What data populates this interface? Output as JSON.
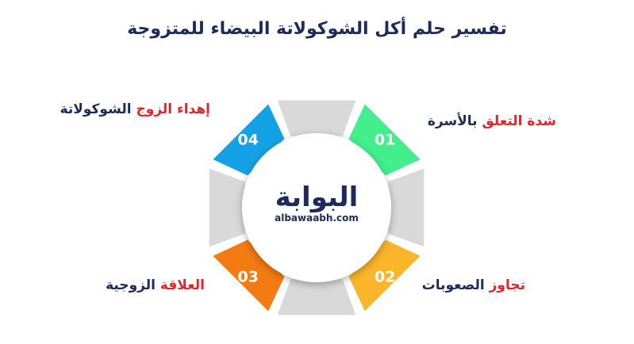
{
  "title": "تفسير حلم أكل الشوكولاتة البيضاء للمتزوجة",
  "logo": {
    "name": "البوابة",
    "site": "albawaabh.com"
  },
  "items": [
    {
      "number": "01",
      "highlight": "شدة التعلق",
      "rest": "بالأسرة"
    },
    {
      "number": "02",
      "highlight": "تجاوز",
      "rest": "الصعوبات"
    },
    {
      "number": "03",
      "highlight": "العلاقة",
      "rest": "الزوجية"
    },
    {
      "number": "04",
      "highlight": "إهداء الزوج",
      "rest": "الشوكولاتة"
    }
  ]
}
